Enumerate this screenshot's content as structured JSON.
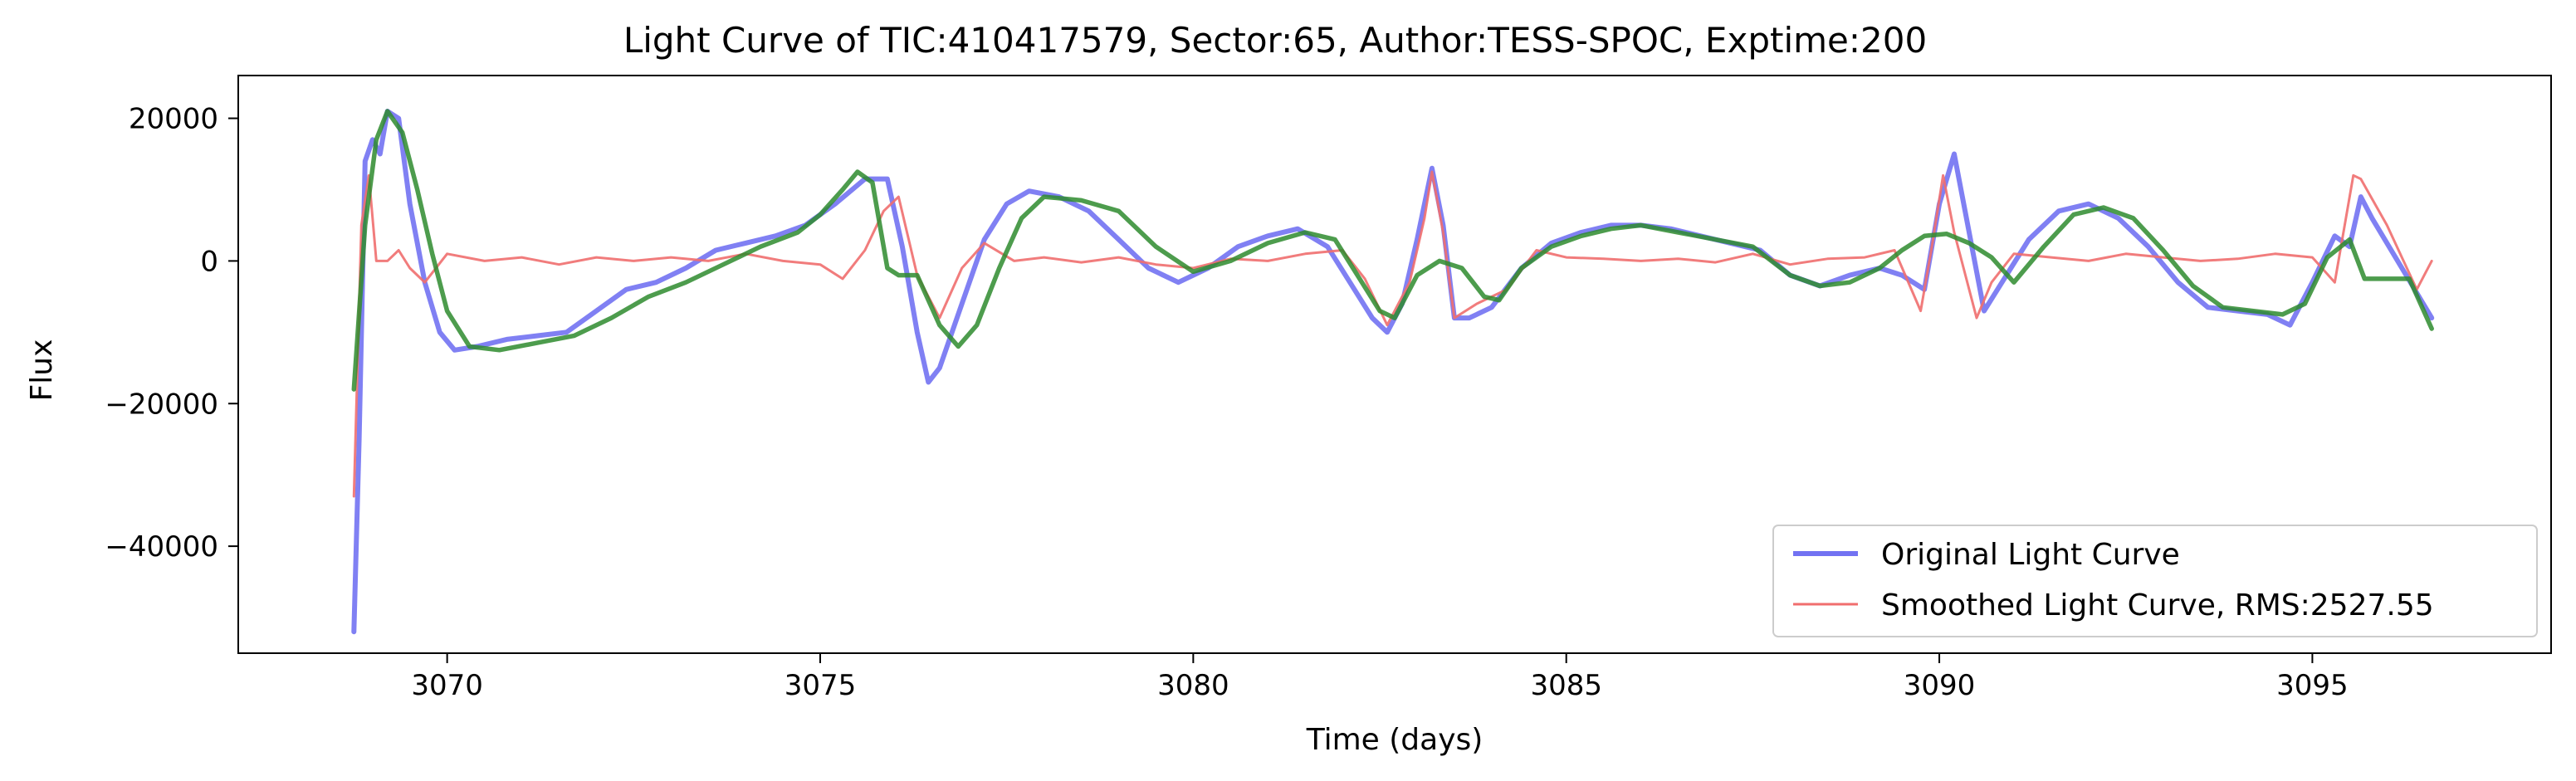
{
  "chart_data": {
    "type": "line",
    "title": "Light Curve of TIC:410417579, Sector:65, Author:TESS-SPOC, Exptime:200",
    "xlabel": "Time (days)",
    "ylabel": "Flux",
    "xlim": [
      3067.2,
      3098.2
    ],
    "ylim": [
      -55000,
      26000
    ],
    "xticks": [
      3070,
      3075,
      3080,
      3085,
      3090,
      3095
    ],
    "xtick_labels": [
      "3070",
      "3075",
      "3080",
      "3085",
      "3090",
      "3095"
    ],
    "yticks": [
      -40000,
      -20000,
      0,
      20000
    ],
    "ytick_labels": [
      "−40000",
      "−20000",
      "0",
      "20000"
    ],
    "grid": false,
    "legend_position": "lower-right",
    "series": [
      {
        "name": "Original Light Curve",
        "color": "#7272f2",
        "style": "thick",
        "x": [
          3068.75,
          3068.82,
          3068.9,
          3069.0,
          3069.1,
          3069.2,
          3069.35,
          3069.5,
          3069.7,
          3069.9,
          3070.1,
          3070.4,
          3070.8,
          3071.2,
          3071.6,
          3072.0,
          3072.4,
          3072.8,
          3073.2,
          3073.6,
          3074.0,
          3074.4,
          3074.8,
          3075.2,
          3075.6,
          3075.9,
          3076.1,
          3076.3,
          3076.45,
          3076.6,
          3076.9,
          3077.2,
          3077.5,
          3077.8,
          3078.2,
          3078.6,
          3079.0,
          3079.4,
          3079.8,
          3080.2,
          3080.6,
          3081.0,
          3081.4,
          3081.8,
          3082.1,
          3082.4,
          3082.6,
          3082.8,
          3083.0,
          3083.2,
          3083.35,
          3083.5,
          3083.7,
          3084.0,
          3084.4,
          3084.8,
          3085.2,
          3085.6,
          3086.0,
          3086.4,
          3086.8,
          3087.2,
          3087.6,
          3088.0,
          3088.4,
          3088.8,
          3089.2,
          3089.5,
          3089.8,
          3090.0,
          3090.2,
          3090.4,
          3090.6,
          3090.9,
          3091.2,
          3091.6,
          3092.0,
          3092.4,
          3092.8,
          3093.2,
          3093.6,
          3094.0,
          3094.4,
          3094.7,
          3095.0,
          3095.3,
          3095.5,
          3095.65,
          3095.8,
          3096.2,
          3096.6
        ],
        "y": [
          -52000,
          -25000,
          14000,
          17000,
          15000,
          21000,
          20000,
          8000,
          -3000,
          -10000,
          -12500,
          -12000,
          -11000,
          -10500,
          -10000,
          -7000,
          -4000,
          -3000,
          -1000,
          1500,
          2500,
          3500,
          5000,
          8000,
          11500,
          11500,
          2000,
          -10000,
          -17000,
          -15000,
          -6000,
          3000,
          8000,
          9800,
          9000,
          7000,
          3000,
          -1000,
          -3000,
          -1000,
          2000,
          3500,
          4500,
          2000,
          -3000,
          -8000,
          -10000,
          -6000,
          3000,
          13000,
          5000,
          -8000,
          -8000,
          -6500,
          -1000,
          2500,
          4000,
          5000,
          5000,
          4500,
          3500,
          2500,
          1500,
          -2000,
          -3500,
          -2000,
          -1000,
          -2000,
          -4000,
          8000,
          15000,
          4000,
          -7000,
          -2000,
          3000,
          7000,
          8000,
          6000,
          2000,
          -3000,
          -6500,
          -7000,
          -7500,
          -9000,
          -3000,
          3500,
          2000,
          9000,
          6000,
          -1000,
          -8000
        ]
      },
      {
        "name": "Smoothed Light Curve, RMS:2527.55",
        "color": "#f06e6e",
        "style": "thin",
        "x": [
          3068.75,
          3068.85,
          3068.95,
          3069.05,
          3069.2,
          3069.35,
          3069.5,
          3069.7,
          3070.0,
          3070.5,
          3071.0,
          3071.5,
          3072.0,
          3072.5,
          3073.0,
          3073.5,
          3074.0,
          3074.5,
          3075.0,
          3075.3,
          3075.6,
          3075.85,
          3076.05,
          3076.3,
          3076.6,
          3076.9,
          3077.2,
          3077.6,
          3078.0,
          3078.5,
          3079.0,
          3079.5,
          3080.0,
          3080.5,
          3081.0,
          3081.5,
          3082.0,
          3082.3,
          3082.6,
          3082.9,
          3083.1,
          3083.2,
          3083.35,
          3083.5,
          3083.8,
          3084.2,
          3084.6,
          3085.0,
          3085.5,
          3086.0,
          3086.5,
          3087.0,
          3087.5,
          3088.0,
          3088.5,
          3089.0,
          3089.4,
          3089.75,
          3089.9,
          3090.05,
          3090.2,
          3090.5,
          3090.7,
          3091.0,
          3091.5,
          3092.0,
          3092.5,
          3093.0,
          3093.5,
          3094.0,
          3094.5,
          3095.0,
          3095.3,
          3095.55,
          3095.65,
          3096.0,
          3096.4,
          3096.6
        ],
        "y": [
          -33000,
          5000,
          12000,
          0,
          0,
          1500,
          -1000,
          -3000,
          1000,
          0,
          500,
          -500,
          500,
          0,
          500,
          0,
          1000,
          0,
          -500,
          -2500,
          1500,
          7000,
          9000,
          -2000,
          -8000,
          -1000,
          2500,
          0,
          500,
          -200,
          500,
          -500,
          -1000,
          300,
          0,
          1000,
          1500,
          -2500,
          -9000,
          -3000,
          6000,
          12500,
          4000,
          -8000,
          -6000,
          -4000,
          1500,
          500,
          300,
          0,
          300,
          -200,
          1000,
          -500,
          300,
          500,
          1500,
          -7000,
          2000,
          12000,
          4000,
          -8000,
          -3000,
          1000,
          500,
          0,
          1000,
          500,
          0,
          300,
          1000,
          500,
          -3000,
          12000,
          11500,
          5000,
          -4000,
          0
        ]
      },
      {
        "name": "",
        "color": "#2e8b2e",
        "style": "medium",
        "x": [
          3068.75,
          3068.9,
          3069.05,
          3069.2,
          3069.4,
          3069.6,
          3069.8,
          3070.0,
          3070.3,
          3070.7,
          3071.2,
          3071.7,
          3072.2,
          3072.7,
          3073.2,
          3073.7,
          3074.2,
          3074.7,
          3075.0,
          3075.3,
          3075.5,
          3075.7,
          3075.9,
          3076.05,
          3076.3,
          3076.6,
          3076.85,
          3077.1,
          3077.4,
          3077.7,
          3078.0,
          3078.5,
          3079.0,
          3079.5,
          3080.0,
          3080.5,
          3081.0,
          3081.5,
          3081.9,
          3082.2,
          3082.5,
          3082.7,
          3083.0,
          3083.3,
          3083.6,
          3083.9,
          3084.1,
          3084.4,
          3084.8,
          3085.2,
          3085.6,
          3086.0,
          3086.5,
          3087.0,
          3087.5,
          3088.0,
          3088.4,
          3088.8,
          3089.2,
          3089.5,
          3089.8,
          3090.1,
          3090.4,
          3090.7,
          3091.0,
          3091.4,
          3091.8,
          3092.2,
          3092.6,
          3093.0,
          3093.4,
          3093.8,
          3094.2,
          3094.6,
          3094.9,
          3095.2,
          3095.5,
          3095.7,
          3096.0,
          3096.3,
          3096.6
        ],
        "y": [
          -18000,
          5000,
          17000,
          21000,
          18000,
          10000,
          1000,
          -7000,
          -12000,
          -12500,
          -11500,
          -10500,
          -8000,
          -5000,
          -3000,
          -500,
          2000,
          4000,
          6500,
          10000,
          12500,
          11000,
          -1000,
          -2000,
          -2000,
          -9000,
          -12000,
          -9000,
          -1000,
          6000,
          9000,
          8500,
          7000,
          2000,
          -1500,
          0,
          2500,
          4000,
          3000,
          -2000,
          -7000,
          -8000,
          -2000,
          0,
          -1000,
          -5000,
          -5500,
          -1000,
          2000,
          3500,
          4500,
          5000,
          4000,
          3000,
          2000,
          -2000,
          -3500,
          -3000,
          -1000,
          1500,
          3500,
          3800,
          2500,
          500,
          -3000,
          2000,
          6500,
          7500,
          6000,
          1500,
          -3500,
          -6500,
          -7000,
          -7500,
          -6000,
          500,
          3000,
          -2500,
          -2500,
          -2500,
          -9500
        ]
      }
    ]
  }
}
